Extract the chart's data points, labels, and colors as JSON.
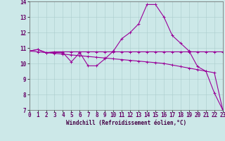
{
  "xlabel": "Windchill (Refroidissement éolien,°C)",
  "x_values": [
    0,
    1,
    2,
    3,
    4,
    5,
    6,
    7,
    8,
    9,
    10,
    11,
    12,
    13,
    14,
    15,
    16,
    17,
    18,
    19,
    20,
    21,
    22,
    23
  ],
  "line1": [
    10.8,
    10.9,
    10.7,
    10.75,
    10.75,
    10.75,
    10.75,
    10.75,
    10.75,
    10.75,
    10.75,
    10.75,
    10.75,
    10.75,
    10.75,
    10.75,
    10.75,
    10.75,
    10.75,
    10.75,
    10.75,
    10.75,
    10.75,
    10.75
  ],
  "line2": [
    10.8,
    10.9,
    10.7,
    10.7,
    10.7,
    10.1,
    10.7,
    9.85,
    9.85,
    10.3,
    10.8,
    11.6,
    12.0,
    12.55,
    13.8,
    13.8,
    13.0,
    11.8,
    11.3,
    10.8,
    9.8,
    9.5,
    8.1,
    7.0
  ],
  "line3": [
    10.8,
    10.75,
    10.7,
    10.65,
    10.6,
    10.55,
    10.5,
    10.45,
    10.4,
    10.35,
    10.3,
    10.25,
    10.2,
    10.15,
    10.1,
    10.05,
    10.0,
    9.9,
    9.8,
    9.7,
    9.6,
    9.5,
    9.4,
    7.0
  ],
  "color": "#990099",
  "bg_color": "#cce8e8",
  "grid_color": "#aacccc",
  "ylim": [
    7,
    14
  ],
  "xlim": [
    0,
    23
  ],
  "yticks": [
    7,
    8,
    9,
    10,
    11,
    12,
    13,
    14
  ],
  "xticks": [
    0,
    1,
    2,
    3,
    4,
    5,
    6,
    7,
    8,
    9,
    10,
    11,
    12,
    13,
    14,
    15,
    16,
    17,
    18,
    19,
    20,
    21,
    22,
    23
  ],
  "xlabel_fontsize": 5.5,
  "tick_fontsize": 5.5,
  "linewidth": 0.8,
  "markersize": 2.5
}
